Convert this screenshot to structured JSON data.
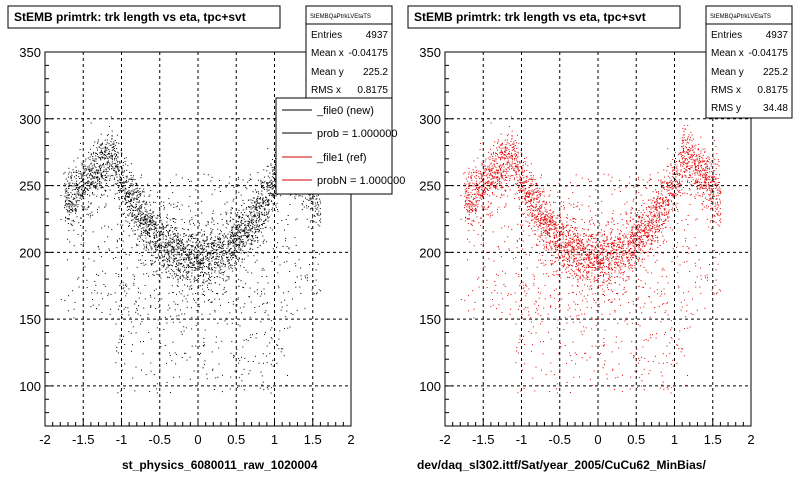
{
  "chart_data": [
    {
      "type": "scatter",
      "title": "StEMB primtrk: trk length vs eta, tpc+svt",
      "xlim": [
        -2,
        2
      ],
      "ylim": [
        70,
        350
      ],
      "xticks": [
        "-2",
        "-1.5",
        "-1",
        "-0.5",
        "0",
        "0.5",
        "1",
        "1.5",
        "2"
      ],
      "yticks": [
        "100",
        "150",
        "200",
        "250",
        "300",
        "350"
      ],
      "grid": true,
      "marker_color": "#000000",
      "footer": "st_physics_6080011_raw_1020004",
      "stats": {
        "name": "StEMBQaPtrkLVEtaTS",
        "rows": [
          {
            "label": "Entries",
            "value": "4937"
          },
          {
            "label": "Mean x",
            "value": "-0.04175"
          },
          {
            "label": "Mean y",
            "value": "225.2"
          },
          {
            "label": "RMS x",
            "value": "0.8175"
          }
        ]
      },
      "legend": [
        {
          "label": "_file0 (new)",
          "color": "#000000"
        },
        {
          "label": "prob = 1.000000",
          "color": "#000000"
        },
        {
          "label": "_file1 (ref)",
          "color": "#d00000"
        },
        {
          "label": "probN = 1.000000",
          "color": "#d00000"
        }
      ],
      "entries": 4937,
      "mean_x": -0.04175,
      "mean_y": 225.2,
      "rms_x": 0.8175
    },
    {
      "type": "scatter",
      "title": "StEMB primtrk: trk length vs eta, tpc+svt",
      "xlim": [
        -2,
        2
      ],
      "ylim": [
        70,
        350
      ],
      "xticks": [
        "-2",
        "-1.5",
        "-1",
        "-0.5",
        "0",
        "0.5",
        "1",
        "1.5",
        "2"
      ],
      "yticks": [
        "100",
        "150",
        "200",
        "250",
        "300",
        "350"
      ],
      "grid": true,
      "marker_color": "#e00000",
      "footer": "dev/daq_sl302.ittf/Sat/year_2005/CuCu62_MinBias/",
      "stats": {
        "name": "StEMBQaPtrkLVEtaTS",
        "rows": [
          {
            "label": "Entries",
            "value": "4937"
          },
          {
            "label": "Mean x",
            "value": "-0.04175"
          },
          {
            "label": "Mean y",
            "value": "225.2"
          },
          {
            "label": "RMS x",
            "value": "0.8175"
          },
          {
            "label": "RMS y",
            "value": "34.48"
          }
        ]
      },
      "entries": 4937,
      "mean_x": -0.04175,
      "mean_y": 225.2,
      "rms_x": 0.8175,
      "rms_y": 34.48
    }
  ]
}
